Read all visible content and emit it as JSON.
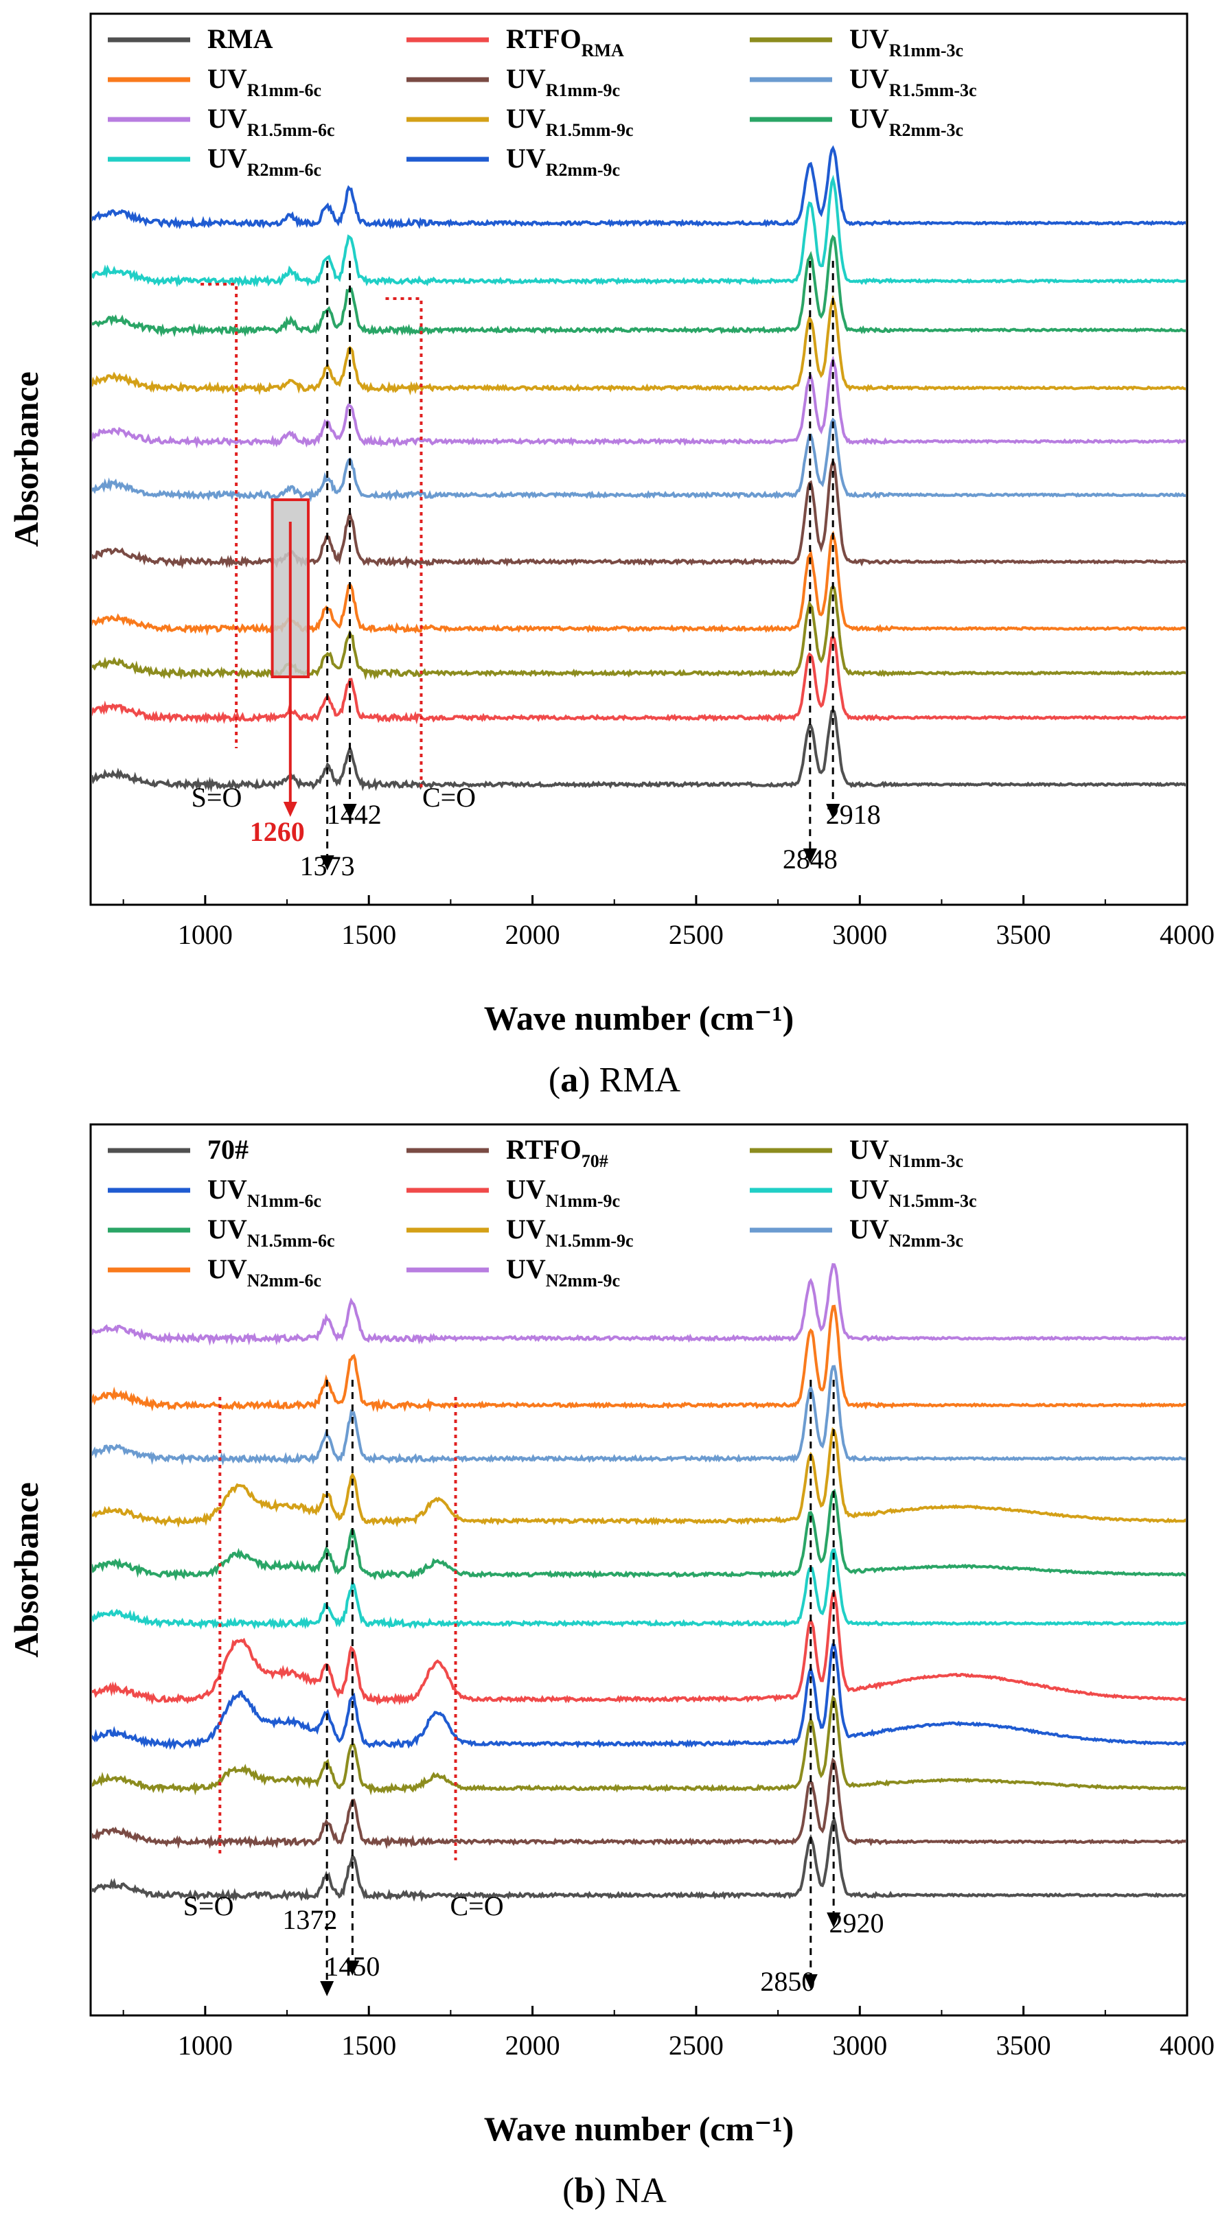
{
  "figure": {
    "caption_a": {
      "letter": "a",
      "text": "RMA"
    },
    "caption_b": {
      "letter": "b",
      "text": "NA"
    }
  },
  "chart_data": [
    {
      "id": "a",
      "type": "line",
      "xlabel": "Wave number (cm⁻¹)",
      "ylabel": "Absorbance",
      "xlim": [
        650,
        4000
      ],
      "xticks": [
        "1000",
        "1500",
        "2000",
        "2500",
        "3000",
        "3500",
        "4000"
      ],
      "yticks_shown": false,
      "grid": false,
      "legend": {
        "placement": "top",
        "columns": 3
      },
      "series": [
        {
          "name": "RMA",
          "sub": "",
          "color": "#505050",
          "baseline": 0.135
        },
        {
          "name": "RTFO",
          "sub": "RMA",
          "color": "#f04a4a",
          "baseline": 0.21
        },
        {
          "name": "UV",
          "sub": "R1mm-3c",
          "color": "#8c8c1e",
          "baseline": 0.26
        },
        {
          "name": "UV",
          "sub": "R1mm-6c",
          "color": "#f97a1c",
          "baseline": 0.31
        },
        {
          "name": "UV",
          "sub": "R1mm-9c",
          "color": "#7a4b44",
          "baseline": 0.385
        },
        {
          "name": "UV",
          "sub": "R1.5mm-3c",
          "color": "#6b9bd0",
          "baseline": 0.46
        },
        {
          "name": "UV",
          "sub": "R1.5mm-6c",
          "color": "#b87de0",
          "baseline": 0.52
        },
        {
          "name": "UV",
          "sub": "R1.5mm-9c",
          "color": "#d4a017",
          "baseline": 0.58
        },
        {
          "name": "UV",
          "sub": "R2mm-3c",
          "color": "#2aa566",
          "baseline": 0.645
        },
        {
          "name": "UV",
          "sub": "R2mm-6c",
          "color": "#20cfc6",
          "baseline": 0.7
        },
        {
          "name": "UV",
          "sub": "R2mm-9c",
          "color": "#1f5bd1",
          "baseline": 0.765
        }
      ],
      "peaks": [
        {
          "x": 1260,
          "h": 0.012
        },
        {
          "x": 1373,
          "h": 0.028
        },
        {
          "x": 1442,
          "h": 0.055
        },
        {
          "x": 2848,
          "h": 0.095
        },
        {
          "x": 2918,
          "h": 0.12
        }
      ],
      "annotations": [
        {
          "text": "S=O",
          "x": 1030
        },
        {
          "text": "1260",
          "x": 1260
        },
        {
          "text": "1373",
          "x": 1373
        },
        {
          "text": "1442",
          "x": 1442
        },
        {
          "text": "C=O",
          "x": 1668
        },
        {
          "text": "2848",
          "x": 2848
        },
        {
          "text": "2918",
          "x": 2918
        }
      ]
    },
    {
      "id": "b",
      "type": "line",
      "xlabel": "Wave number (cm⁻¹)",
      "ylabel": "Absorbance",
      "xlim": [
        650,
        4000
      ],
      "xticks": [
        "1000",
        "1500",
        "2000",
        "2500",
        "3000",
        "3500",
        "4000"
      ],
      "yticks_shown": false,
      "grid": false,
      "legend": {
        "placement": "top",
        "columns": 3
      },
      "series": [
        {
          "name": "70#",
          "sub": "",
          "color": "#505050",
          "baseline": 0.135,
          "broad": 0.0
        },
        {
          "name": "RTFO",
          "sub": "70#",
          "color": "#7a4b44",
          "baseline": 0.195,
          "broad": 0.0
        },
        {
          "name": "UV",
          "sub": "N1mm-3c",
          "color": "#8c8c1e",
          "baseline": 0.255,
          "broad": 0.02
        },
        {
          "name": "UV",
          "sub": "N1mm-6c",
          "color": "#1f5bd1",
          "baseline": 0.305,
          "broad": 0.05
        },
        {
          "name": "UV",
          "sub": "N1mm-9c",
          "color": "#f04a4a",
          "baseline": 0.355,
          "broad": 0.06
        },
        {
          "name": "UV",
          "sub": "N1.5mm-3c",
          "color": "#20cfc6",
          "baseline": 0.44,
          "broad": 0.0
        },
        {
          "name": "UV",
          "sub": "N1.5mm-6c",
          "color": "#2aa566",
          "baseline": 0.495,
          "broad": 0.02
        },
        {
          "name": "UV",
          "sub": "N1.5mm-9c",
          "color": "#d4a017",
          "baseline": 0.555,
          "broad": 0.035
        },
        {
          "name": "UV",
          "sub": "N2mm-3c",
          "color": "#6b9bd0",
          "baseline": 0.625,
          "broad": 0.0
        },
        {
          "name": "UV",
          "sub": "N2mm-6c",
          "color": "#f97a1c",
          "baseline": 0.685,
          "broad": 0.0
        },
        {
          "name": "UV",
          "sub": "N2mm-9c",
          "color": "#b87de0",
          "baseline": 0.76,
          "broad": 0.0
        }
      ],
      "peaks": [
        {
          "x": 1372,
          "h": 0.03
        },
        {
          "x": 1450,
          "h": 0.06
        },
        {
          "x": 2850,
          "h": 0.09
        },
        {
          "x": 2920,
          "h": 0.12
        }
      ],
      "annotations": [
        {
          "text": "S=O",
          "x": 1040
        },
        {
          "text": "1372",
          "x": 1372
        },
        {
          "text": "1450",
          "x": 1450
        },
        {
          "text": "C=O",
          "x": 1770
        },
        {
          "text": "2850",
          "x": 2850
        },
        {
          "text": "2920",
          "x": 2920
        }
      ]
    }
  ]
}
